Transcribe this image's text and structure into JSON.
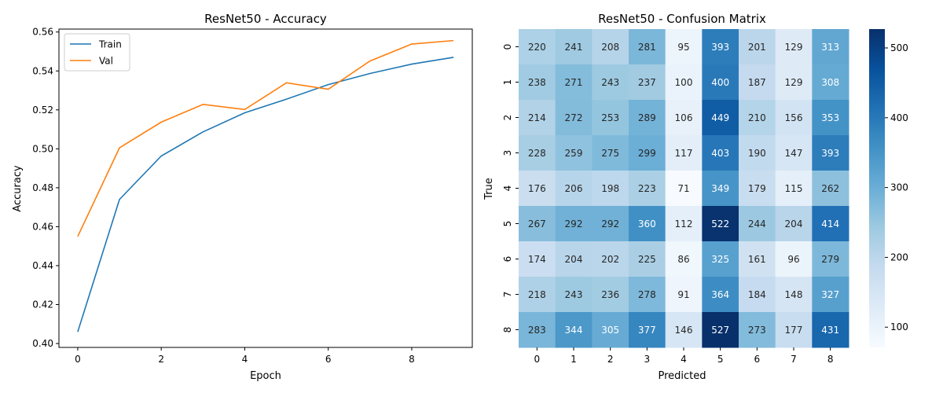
{
  "chart_data": [
    {
      "type": "line",
      "title": "ResNet50 - Accuracy",
      "xlabel": "Epoch",
      "ylabel": "Accuracy",
      "xlim": [
        -0.45,
        9.45
      ],
      "ylim": [
        0.398,
        0.5615
      ],
      "xticks": [
        0,
        2,
        4,
        6,
        8
      ],
      "yticks": [
        0.4,
        0.42,
        0.44,
        0.46,
        0.48,
        0.5,
        0.52,
        0.54,
        0.56
      ],
      "legend_position": "top-left",
      "x": [
        0,
        1,
        2,
        3,
        4,
        5,
        6,
        7,
        8,
        9
      ],
      "series": [
        {
          "name": "Train",
          "color": "#1f77b4",
          "values": [
            0.406,
            0.474,
            0.4963,
            0.5087,
            0.5185,
            0.5255,
            0.533,
            0.5387,
            0.5435,
            0.547
          ]
        },
        {
          "name": "Val",
          "color": "#ff7f0e",
          "values": [
            0.455,
            0.5005,
            0.5137,
            0.5228,
            0.5202,
            0.5339,
            0.5306,
            0.5451,
            0.5538,
            0.5556
          ]
        }
      ]
    },
    {
      "type": "heatmap",
      "title": "ResNet50 - Confusion Matrix",
      "xlabel": "Predicted",
      "ylabel": "True",
      "x_categories": [
        "0",
        "1",
        "2",
        "3",
        "4",
        "5",
        "6",
        "7",
        "8"
      ],
      "y_categories": [
        "0",
        "1",
        "2",
        "3",
        "4",
        "5",
        "6",
        "7",
        "8"
      ],
      "colormap": "Blues",
      "vmin": 71,
      "vmax": 527,
      "colorbar_ticks": [
        100,
        200,
        300,
        400,
        500
      ],
      "matrix": [
        [
          220,
          241,
          208,
          281,
          95,
          393,
          201,
          129,
          313
        ],
        [
          238,
          271,
          243,
          237,
          100,
          400,
          187,
          129,
          308
        ],
        [
          214,
          272,
          253,
          289,
          106,
          449,
          210,
          156,
          353
        ],
        [
          228,
          259,
          275,
          299,
          117,
          403,
          190,
          147,
          393
        ],
        [
          176,
          206,
          198,
          223,
          71,
          349,
          179,
          115,
          262
        ],
        [
          267,
          292,
          292,
          360,
          112,
          522,
          244,
          204,
          414
        ],
        [
          174,
          204,
          202,
          225,
          86,
          325,
          161,
          96,
          279
        ],
        [
          218,
          243,
          236,
          278,
          91,
          364,
          184,
          148,
          327
        ],
        [
          283,
          344,
          305,
          377,
          146,
          527,
          273,
          177,
          431
        ]
      ]
    }
  ]
}
